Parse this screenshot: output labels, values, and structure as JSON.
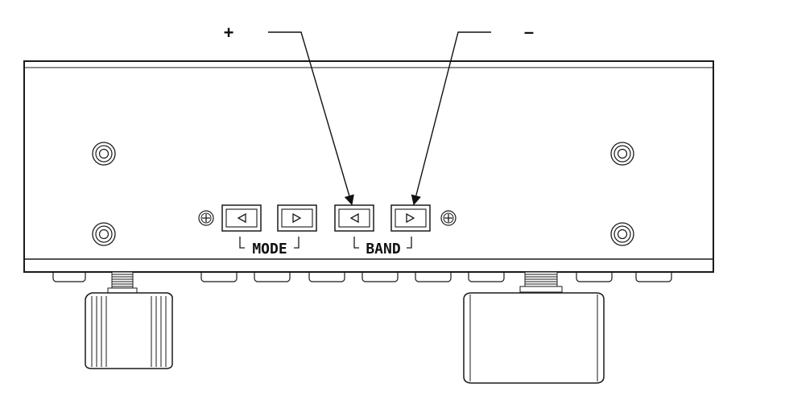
{
  "callouts": {
    "plus": "+",
    "minus": "–"
  },
  "groups": {
    "mode": "MODE",
    "band": "BAND"
  },
  "buttons": {
    "mode_left": "left-arrow",
    "mode_right": "right-arrow",
    "band_left": "left-arrow",
    "band_right": "right-arrow"
  },
  "colors": {
    "line": "#1a1a1a",
    "background": "#ffffff"
  }
}
